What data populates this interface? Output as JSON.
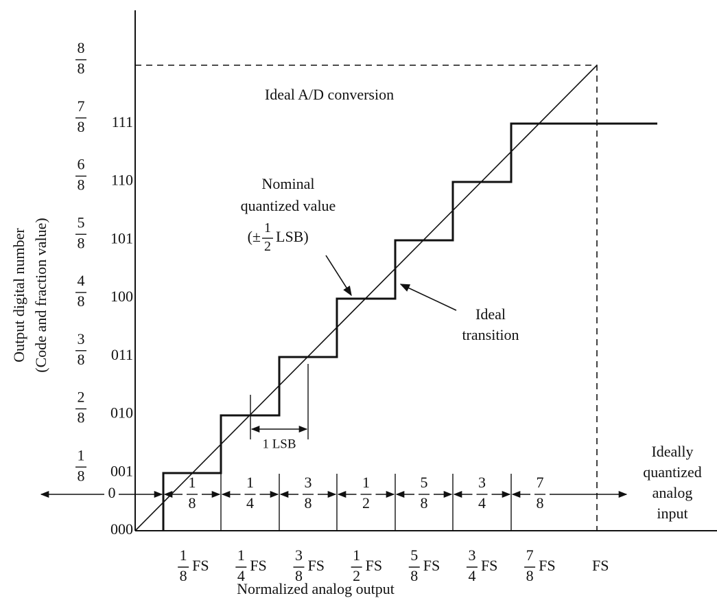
{
  "y_axis_title": [
    "Output digital number",
    "(Code and fraction value)"
  ],
  "x_axis_title": "Normalized analog output",
  "codes": [
    "000",
    "001",
    "010",
    "011",
    "100",
    "101",
    "110",
    "111"
  ],
  "y_fractions": [
    {
      "num": "1",
      "den": "8"
    },
    {
      "num": "2",
      "den": "8"
    },
    {
      "num": "3",
      "den": "8"
    },
    {
      "num": "4",
      "den": "8"
    },
    {
      "num": "5",
      "den": "8"
    },
    {
      "num": "6",
      "den": "8"
    },
    {
      "num": "7",
      "den": "8"
    },
    {
      "num": "8",
      "den": "8"
    }
  ],
  "x_ticks": [
    {
      "num": "1",
      "den": "8",
      "unit": "FS"
    },
    {
      "num": "1",
      "den": "4",
      "unit": "FS"
    },
    {
      "num": "3",
      "den": "8",
      "unit": "FS"
    },
    {
      "num": "1",
      "den": "2",
      "unit": "FS"
    },
    {
      "num": "5",
      "den": "8",
      "unit": "FS"
    },
    {
      "num": "3",
      "den": "4",
      "unit": "FS"
    },
    {
      "num": "7",
      "den": "8",
      "unit": "FS"
    },
    {
      "unit": "FS"
    }
  ],
  "left_interval": {
    "label": "0"
  },
  "intervals": [
    {
      "num": "1",
      "den": "8"
    },
    {
      "num": "1",
      "den": "4"
    },
    {
      "num": "3",
      "den": "8"
    },
    {
      "num": "1",
      "den": "2"
    },
    {
      "num": "5",
      "den": "8"
    },
    {
      "num": "3",
      "den": "4"
    },
    {
      "num": "7",
      "den": "8"
    }
  ],
  "annotations": {
    "ideal_conversion": "Ideal A/D conversion",
    "nominal": {
      "lines": [
        "Nominal",
        "quantized value"
      ],
      "open": "(±",
      "num": "1",
      "den": "2",
      "close": "LSB)"
    },
    "ideal_transition": [
      "Ideal",
      "transition"
    ],
    "lsb": "1 LSB",
    "ideally_quantized": [
      "Ideally",
      "quantized",
      "analog",
      "input"
    ]
  }
}
